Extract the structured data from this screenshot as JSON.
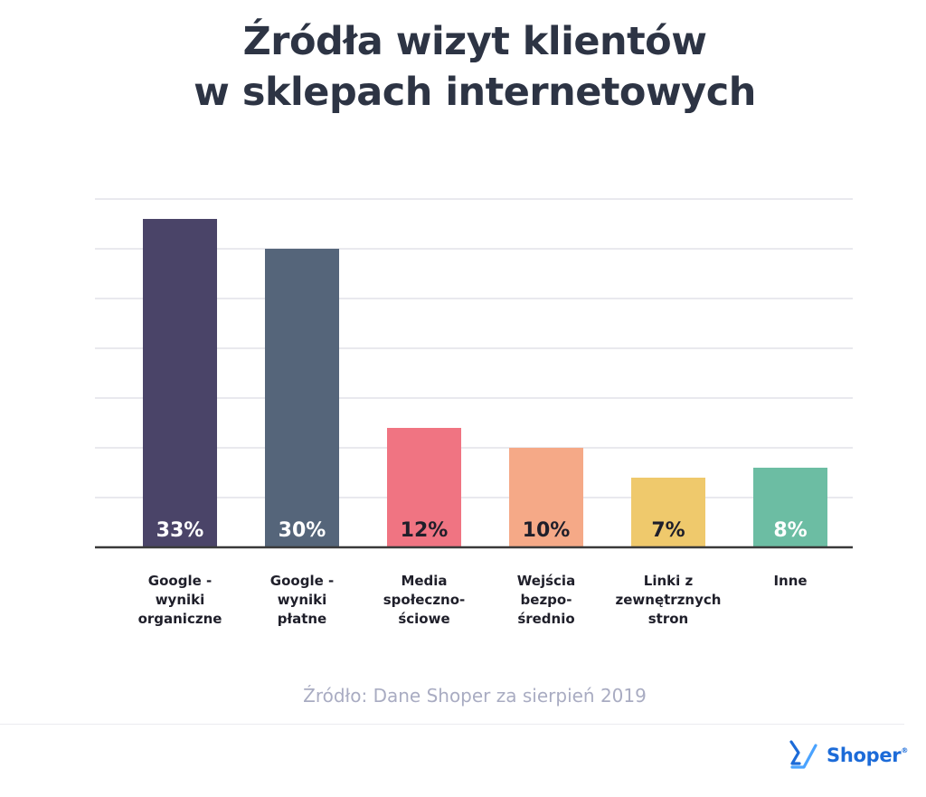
{
  "title": {
    "line1": "Źródła wizyt klientów",
    "line2": "w sklepach internetowych"
  },
  "source": "Źródło: Dane Shoper za sierpień 2019",
  "brand": {
    "name": "Shoper",
    "mark": "®",
    "color": "#1c6bd8"
  },
  "chart_data": {
    "type": "bar",
    "title": "Źródła wizyt klientów w sklepach internetowych",
    "xlabel": "",
    "ylabel": "",
    "ylim": [
      0,
      35
    ],
    "grid": true,
    "y_axis_labels_shown": false,
    "value_label_position": "inside-bottom",
    "categories": [
      [
        "Google -",
        "wyniki",
        "organiczne"
      ],
      [
        "Google -",
        "wyniki",
        "płatne"
      ],
      [
        "Media",
        "społeczno-",
        "ściowe"
      ],
      [
        "Wejścia",
        "bezpo-",
        "średnio"
      ],
      [
        "Linki z",
        "zewnętrznych",
        "stron"
      ],
      [
        "Inne"
      ]
    ],
    "values": [
      33,
      30,
      12,
      10,
      7,
      8
    ],
    "value_labels": [
      "33%",
      "30%",
      "12%",
      "10%",
      "7%",
      "8%"
    ],
    "colors": [
      "#4a4468",
      "#55657a",
      "#f07482",
      "#f5a987",
      "#efc96c",
      "#6cbda3"
    ],
    "label_colors": [
      "#ffffff",
      "#ffffff",
      "#1f1f2a",
      "#1f1f2a",
      "#1f1f2a",
      "#ffffff"
    ]
  }
}
